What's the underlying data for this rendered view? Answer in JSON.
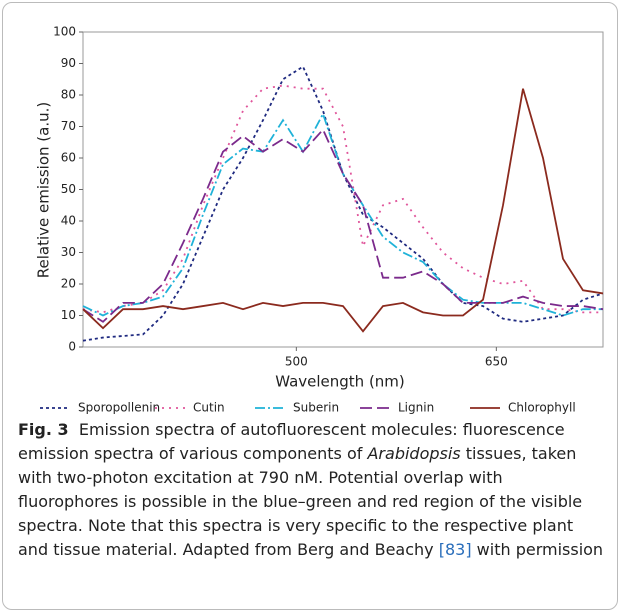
{
  "chart_data": {
    "type": "line",
    "x_label": "Wavelength (nm)",
    "y_label": "Relative emission (a.u.)",
    "x": [
      340,
      355,
      370,
      385,
      400,
      415,
      430,
      445,
      460,
      475,
      490,
      505,
      520,
      535,
      550,
      565,
      580,
      595,
      610,
      625,
      640,
      655,
      670,
      685,
      700,
      715,
      730
    ],
    "xlim": [
      340,
      730
    ],
    "xticks": [
      500,
      650
    ],
    "ylim": [
      0,
      100
    ],
    "yticks": [
      0,
      10,
      20,
      30,
      40,
      50,
      60,
      70,
      80,
      90,
      100
    ],
    "grid": false,
    "legend": "bottom",
    "series": [
      {
        "name": "Sporopollenin",
        "color": "#1f2a80",
        "dash": "3,3",
        "values": [
          2,
          3,
          3.5,
          4,
          10,
          20,
          35,
          50,
          60,
          72,
          85,
          89,
          75,
          55,
          42,
          38,
          33,
          28,
          20,
          14,
          13,
          9,
          8,
          9,
          10,
          15,
          17
        ]
      },
      {
        "name": "Cutin",
        "color": "#e0559b",
        "dash": "2,5",
        "values": [
          12,
          11,
          13,
          14,
          18,
          28,
          45,
          60,
          75,
          82,
          83,
          82,
          82,
          70,
          32,
          45,
          47,
          38,
          30,
          25,
          22,
          20,
          21,
          12,
          12,
          11,
          11
        ]
      },
      {
        "name": "Suberin",
        "color": "#1fb2d8",
        "dash": "10,3,2,3",
        "values": [
          13,
          10,
          13,
          14,
          16,
          25,
          42,
          58,
          63,
          62,
          72,
          62,
          74,
          55,
          45,
          35,
          30,
          27,
          20,
          15,
          14,
          14,
          14,
          12,
          10,
          12,
          12
        ]
      },
      {
        "name": "Lignin",
        "color": "#7b2a8c",
        "dash": "12,5",
        "values": [
          12,
          8,
          14,
          14,
          20,
          33,
          47,
          62,
          67,
          62,
          66,
          62,
          69,
          55,
          45,
          22,
          22,
          24,
          20,
          14,
          14,
          14,
          16,
          14,
          13,
          13,
          12
        ]
      },
      {
        "name": "Chlorophyll",
        "color": "#8b2a1e",
        "dash": "",
        "values": [
          12,
          6,
          12,
          12,
          13,
          12,
          13,
          14,
          12,
          14,
          13,
          14,
          14,
          13,
          5,
          13,
          14,
          11,
          10,
          10,
          15,
          45,
          82,
          60,
          28,
          18,
          17
        ]
      }
    ]
  },
  "caption": {
    "label": "Fig. 3",
    "text_1": "Emission spectra of autofluorescent molecules: fluorescence emission spectra of various components of ",
    "italic": "Arabidopsis",
    "text_2": " tissues, taken with two-photon excitation at 790 nM. Potential overlap with fluorophores is possible in the blue–green and red region of the visible spectra. Note that this spectra is very specific to the respective plant and tissue material. Adapted from Berg and Beachy ",
    "ref": "[83]",
    "text_3": " with permission"
  }
}
